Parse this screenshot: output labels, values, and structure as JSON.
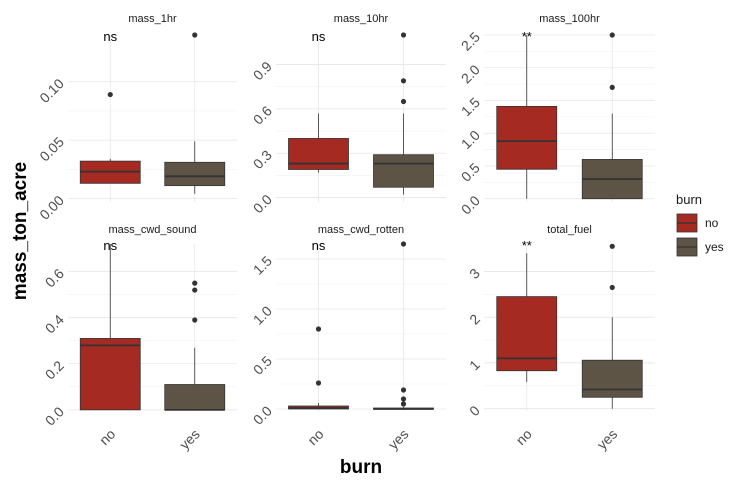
{
  "chart_data": {
    "type": "boxplot",
    "xlabel": "burn",
    "ylabel": "mass_ton_acre",
    "categories": [
      "no",
      "yes"
    ],
    "legend": {
      "title": "burn",
      "position": "right",
      "entries": [
        {
          "label": "no",
          "color": "#A52A22"
        },
        {
          "label": "yes",
          "color": "#5E5446"
        }
      ]
    },
    "grid": true,
    "panels": [
      {
        "name": "mass_1hr",
        "significance": "ns",
        "ylim": [
          -0.003,
          0.14
        ],
        "yticks": [
          0.0,
          0.05,
          0.1
        ],
        "ytick_labels": [
          "0.00",
          "0.05",
          "0.10"
        ],
        "boxes": [
          {
            "category": "no",
            "min": 0.013,
            "q1": 0.013,
            "median": 0.023,
            "q3": 0.032,
            "max": 0.034,
            "outliers": [
              0.089
            ]
          },
          {
            "category": "yes",
            "min": 0.004,
            "q1": 0.011,
            "median": 0.019,
            "q3": 0.031,
            "max": 0.049,
            "outliers": [
              0.14
            ]
          }
        ]
      },
      {
        "name": "mass_10hr",
        "significance": "ns",
        "ylim": [
          -0.03,
          1.1
        ],
        "yticks": [
          0.0,
          0.3,
          0.6,
          0.9
        ],
        "ytick_labels": [
          "0.0",
          "0.3",
          "0.6",
          "0.9"
        ],
        "boxes": [
          {
            "category": "no",
            "min": 0.17,
            "q1": 0.19,
            "median": 0.23,
            "q3": 0.4,
            "max": 0.57,
            "outliers": []
          },
          {
            "category": "yes",
            "min": 0.02,
            "q1": 0.07,
            "median": 0.23,
            "q3": 0.29,
            "max": 0.57,
            "outliers": [
              0.65,
              0.79,
              1.1
            ]
          }
        ]
      },
      {
        "name": "mass_100hr",
        "significance": "**",
        "ylim": [
          -0.05,
          2.5
        ],
        "yticks": [
          0.0,
          0.5,
          1.0,
          1.5,
          2.0,
          2.5
        ],
        "ytick_labels": [
          "0.0",
          "0.5",
          "1.0",
          "1.5",
          "2.0",
          "2.5"
        ],
        "boxes": [
          {
            "category": "no",
            "min": 0.0,
            "q1": 0.45,
            "median": 0.88,
            "q3": 1.41,
            "max": 2.5,
            "outliers": []
          },
          {
            "category": "yes",
            "min": 0.0,
            "q1": 0.0,
            "median": 0.3,
            "q3": 0.6,
            "max": 1.3,
            "outliers": [
              1.7,
              2.5
            ]
          }
        ]
      },
      {
        "name": "mass_cwd_sound",
        "significance": "ns",
        "ylim": [
          -0.005,
          0.72
        ],
        "yticks": [
          0.0,
          0.2,
          0.4,
          0.6
        ],
        "ytick_labels": [
          "0.0",
          "0.2",
          "0.4",
          "0.6"
        ],
        "boxes": [
          {
            "category": "no",
            "min": 0.0,
            "q1": 0.0,
            "median": 0.28,
            "q3": 0.31,
            "max": 0.72,
            "outliers": []
          },
          {
            "category": "yes",
            "min": 0.0,
            "q1": 0.0,
            "median": 0.0,
            "q3": 0.11,
            "max": 0.27,
            "outliers": [
              0.39,
              0.52,
              0.55
            ]
          }
        ]
      },
      {
        "name": "mass_cwd_rotten",
        "significance": "ns",
        "ylim": [
          -0.02,
          1.65
        ],
        "yticks": [
          0.0,
          0.5,
          1.0,
          1.5
        ],
        "ytick_labels": [
          "0.0",
          "0.5",
          "1.0",
          "1.5"
        ],
        "boxes": [
          {
            "category": "no",
            "min": 0.0,
            "q1": 0.0,
            "median": 0.01,
            "q3": 0.03,
            "max": 0.06,
            "outliers": [
              0.26,
              0.8
            ]
          },
          {
            "category": "yes",
            "min": 0.0,
            "q1": 0.0,
            "median": 0.0,
            "q3": 0.01,
            "max": 0.02,
            "outliers": [
              0.05,
              0.1,
              0.19,
              1.65
            ]
          }
        ]
      },
      {
        "name": "total_fuel",
        "significance": "**",
        "ylim": [
          -0.05,
          3.6
        ],
        "yticks": [
          0,
          1,
          2,
          3
        ],
        "ytick_labels": [
          "0",
          "1",
          "2",
          "3"
        ],
        "boxes": [
          {
            "category": "no",
            "min": 0.58,
            "q1": 0.83,
            "median": 1.1,
            "q3": 2.45,
            "max": 3.4,
            "outliers": []
          },
          {
            "category": "yes",
            "min": 0.0,
            "q1": 0.25,
            "median": 0.42,
            "q3": 1.06,
            "max": 2.0,
            "outliers": [
              2.65,
              3.55
            ]
          }
        ]
      }
    ]
  }
}
